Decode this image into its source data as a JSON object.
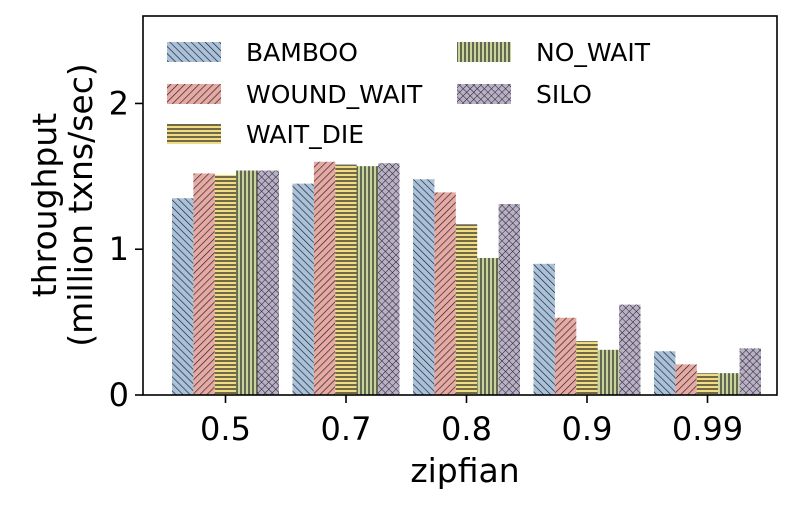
{
  "chart_data": {
    "type": "bar",
    "title": "",
    "xlabel": "zipfian",
    "ylabel": "throughput\n(million txns/sec)",
    "categories": [
      "0.5",
      "0.7",
      "0.8",
      "0.9",
      "0.99"
    ],
    "ylim": [
      0,
      2.6
    ],
    "yticks": [
      0,
      1,
      2
    ],
    "legend_position": "top-left",
    "grid": false,
    "series": [
      {
        "name": "BAMBOO",
        "values": [
          1.35,
          1.45,
          1.48,
          0.9,
          0.3
        ],
        "color": "#a9c1da",
        "pattern": "diag-back"
      },
      {
        "name": "WOUND_WAIT",
        "values": [
          1.52,
          1.6,
          1.39,
          0.53,
          0.21
        ],
        "color": "#e6a9a3",
        "pattern": "diag-fwd"
      },
      {
        "name": "WAIT_DIE",
        "values": [
          1.51,
          1.58,
          1.17,
          0.37,
          0.15
        ],
        "color": "#f0dc82",
        "pattern": "horiz"
      },
      {
        "name": "NO_WAIT",
        "values": [
          1.54,
          1.57,
          0.94,
          0.31,
          0.15
        ],
        "color": "#c9d49c",
        "pattern": "vert"
      },
      {
        "name": "SILO",
        "values": [
          1.54,
          1.59,
          1.31,
          0.62,
          0.32
        ],
        "color": "#b9b0c8",
        "pattern": "cross"
      }
    ]
  }
}
